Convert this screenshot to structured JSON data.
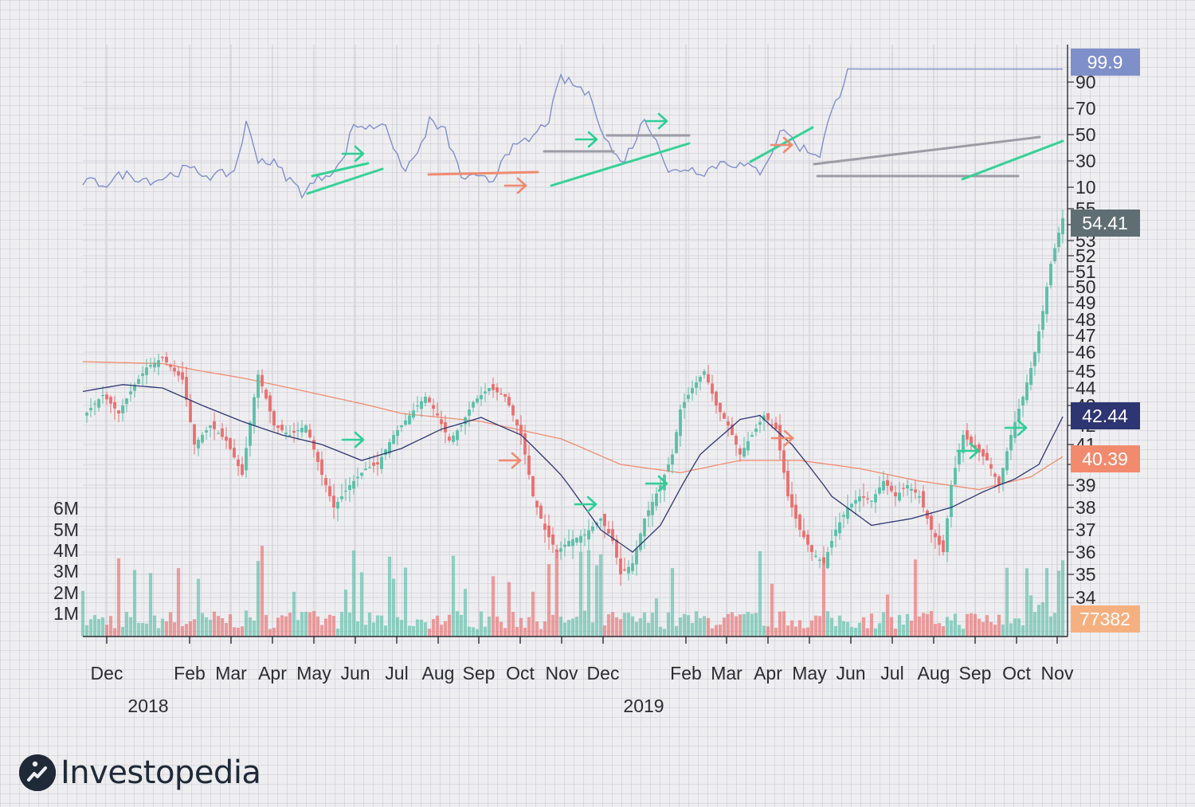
{
  "chart_data": {
    "type": "candlestick",
    "brand": "Investopedia",
    "x_months": [
      "Dec",
      "Feb",
      "Mar",
      "Apr",
      "May",
      "Jun",
      "Jul",
      "Aug",
      "Sep",
      "Oct",
      "Nov",
      "Dec",
      "Feb",
      "Mar",
      "Apr",
      "May",
      "Jun",
      "Jul",
      "Aug",
      "Sep",
      "Oct",
      "Nov"
    ],
    "x_years": [
      "2018",
      "2019"
    ],
    "indicator_panel": {
      "yticks": [
        "90",
        "70",
        "50",
        "30",
        "10"
      ],
      "ylim": [
        0,
        100
      ],
      "last_value": "99.9",
      "color": "#7f8fca",
      "waypoints": [
        [
          0,
          14
        ],
        [
          6,
          13
        ],
        [
          10,
          20
        ],
        [
          18,
          15
        ],
        [
          26,
          24
        ],
        [
          33,
          18
        ],
        [
          38,
          22
        ],
        [
          41,
          58
        ],
        [
          44,
          32
        ],
        [
          48,
          28
        ],
        [
          55,
          6
        ],
        [
          60,
          18
        ],
        [
          65,
          28
        ],
        [
          68,
          58
        ],
        [
          72,
          55
        ],
        [
          76,
          60
        ],
        [
          80,
          22
        ],
        [
          84,
          35
        ],
        [
          87,
          60
        ],
        [
          91,
          52
        ],
        [
          95,
          18
        ],
        [
          99,
          16
        ],
        [
          103,
          15
        ],
        [
          106,
          38
        ],
        [
          109,
          40
        ],
        [
          113,
          48
        ],
        [
          117,
          62
        ],
        [
          120,
          93
        ],
        [
          125,
          85
        ],
        [
          128,
          76
        ],
        [
          131,
          48
        ],
        [
          135,
          28
        ],
        [
          138,
          42
        ],
        [
          141,
          62
        ],
        [
          144,
          48
        ],
        [
          147,
          20
        ],
        [
          151,
          25
        ],
        [
          156,
          22
        ],
        [
          161,
          30
        ],
        [
          166,
          26
        ],
        [
          170,
          22
        ],
        [
          173,
          38
        ],
        [
          176,
          56
        ],
        [
          179,
          42
        ],
        [
          182,
          38
        ],
        [
          185,
          35
        ],
        [
          187,
          58
        ],
        [
          190,
          82
        ],
        [
          192,
          100
        ],
        [
          195,
          99.9
        ]
      ]
    },
    "price_panel": {
      "yticks": [
        "55",
        "54",
        "53",
        "52",
        "51",
        "50",
        "49",
        "48",
        "47",
        "46",
        "45",
        "44",
        "43",
        "42",
        "41",
        "40",
        "39",
        "38",
        "37",
        "36",
        "35",
        "34"
      ],
      "last_price": "54.41",
      "ma_short_value": "42.44",
      "ma_long_value": "40.39",
      "up_color": "#5cbfa8",
      "down_color": "#ea6f6f",
      "ma_short_color": "#2d3572",
      "ma_long_color": "#f28a6e",
      "close_waypoints": [
        [
          0,
          42.4
        ],
        [
          5,
          43.6
        ],
        [
          9,
          42.6
        ],
        [
          13,
          44.2
        ],
        [
          16,
          45.2
        ],
        [
          20,
          45.7
        ],
        [
          25,
          44.5
        ],
        [
          28,
          41.0
        ],
        [
          32,
          42.0
        ],
        [
          36,
          41.2
        ],
        [
          40,
          39.5
        ],
        [
          44,
          44.8
        ],
        [
          48,
          42.0
        ],
        [
          52,
          41.5
        ],
        [
          56,
          42.0
        ],
        [
          60,
          39.5
        ],
        [
          63,
          38.0
        ],
        [
          67,
          39.0
        ],
        [
          71,
          39.8
        ],
        [
          74,
          40.0
        ],
        [
          78,
          41.5
        ],
        [
          82,
          42.5
        ],
        [
          86,
          43.5
        ],
        [
          89,
          42.5
        ],
        [
          92,
          41.2
        ],
        [
          95,
          42.0
        ],
        [
          98,
          43.2
        ],
        [
          102,
          44.0
        ],
        [
          106,
          43.5
        ],
        [
          110,
          41.5
        ],
        [
          113,
          38.5
        ],
        [
          116,
          37.0
        ],
        [
          119,
          36.0
        ],
        [
          122,
          36.5
        ],
        [
          126,
          36.8
        ],
        [
          130,
          37.5
        ],
        [
          133,
          36.5
        ],
        [
          135,
          35.0
        ],
        [
          138,
          35.5
        ],
        [
          141,
          37.5
        ],
        [
          145,
          39.0
        ],
        [
          148,
          40.5
        ],
        [
          150,
          42.8
        ],
        [
          153,
          44.0
        ],
        [
          156,
          45.0
        ],
        [
          159,
          43.0
        ],
        [
          162,
          42.0
        ],
        [
          165,
          40.5
        ],
        [
          168,
          41.5
        ],
        [
          171,
          42.5
        ],
        [
          174,
          41.8
        ],
        [
          177,
          38.5
        ],
        [
          180,
          37.0
        ],
        [
          183,
          36.0
        ],
        [
          186,
          35.5
        ],
        [
          189,
          37.0
        ],
        [
          192,
          38.0
        ],
        [
          195,
          38.5
        ],
        [
          198,
          38.3
        ],
        [
          201,
          39.2
        ],
        [
          204,
          38.5
        ],
        [
          207,
          39.0
        ],
        [
          210,
          38.5
        ],
        [
          213,
          37.0
        ],
        [
          216,
          36.0
        ],
        [
          218,
          39.0
        ],
        [
          221,
          41.5
        ],
        [
          224,
          40.8
        ],
        [
          227,
          40.2
        ],
        [
          230,
          39.0
        ],
        [
          233,
          41.5
        ],
        [
          236,
          43.5
        ],
        [
          239,
          46.0
        ],
        [
          241,
          48.5
        ],
        [
          243,
          51.5
        ],
        [
          245,
          53.5
        ],
        [
          246,
          54.41
        ]
      ],
      "ma_short_waypoints": [
        [
          0,
          43.8
        ],
        [
          10,
          44.2
        ],
        [
          20,
          44.0
        ],
        [
          30,
          43.0
        ],
        [
          40,
          42.2
        ],
        [
          50,
          41.5
        ],
        [
          60,
          41.0
        ],
        [
          70,
          40.2
        ],
        [
          80,
          40.8
        ],
        [
          90,
          41.8
        ],
        [
          100,
          42.4
        ],
        [
          110,
          41.5
        ],
        [
          120,
          39.5
        ],
        [
          130,
          37.0
        ],
        [
          138,
          36.0
        ],
        [
          145,
          37.2
        ],
        [
          155,
          40.5
        ],
        [
          165,
          42.3
        ],
        [
          170,
          42.5
        ],
        [
          178,
          41.0
        ],
        [
          188,
          38.5
        ],
        [
          198,
          37.2
        ],
        [
          208,
          37.5
        ],
        [
          218,
          38.0
        ],
        [
          226,
          38.7
        ],
        [
          234,
          39.3
        ],
        [
          240,
          40.0
        ],
        [
          246,
          42.44
        ]
      ],
      "ma_long_waypoints": [
        [
          0,
          45.5
        ],
        [
          20,
          45.4
        ],
        [
          40,
          44.6
        ],
        [
          60,
          43.6
        ],
        [
          80,
          42.6
        ],
        [
          100,
          42.2
        ],
        [
          120,
          41.3
        ],
        [
          135,
          40.0
        ],
        [
          150,
          39.6
        ],
        [
          165,
          40.2
        ],
        [
          180,
          40.2
        ],
        [
          195,
          39.8
        ],
        [
          210,
          39.2
        ],
        [
          225,
          38.8
        ],
        [
          238,
          39.4
        ],
        [
          246,
          40.39
        ]
      ]
    },
    "volume_panel": {
      "yticks": [
        "6M",
        "5M",
        "4M",
        "3M",
        "2M",
        "1M"
      ],
      "last_value": "77382",
      "label_color": "#f6b07f"
    },
    "annotations": {
      "up_arrow_color": "#2ecf95",
      "down_arrow_color": "#f08a6e",
      "trend_line_color": "#36d196",
      "level_line_color": "#9c9ca6",
      "resistance_line_color": "#f08a6e"
    }
  }
}
